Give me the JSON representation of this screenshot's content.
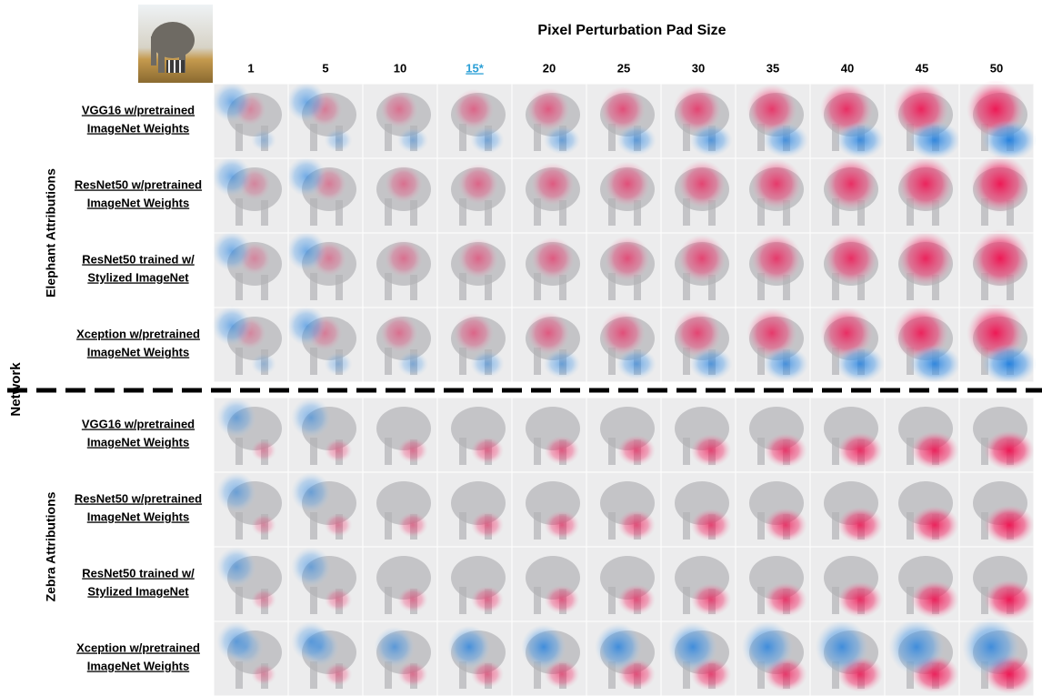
{
  "header": {
    "title": "Pixel Perturbation Pad Size",
    "pad_sizes": [
      "1",
      "5",
      "10",
      "15*",
      "20",
      "25",
      "30",
      "35",
      "40",
      "45",
      "50"
    ]
  },
  "axis_label": "Network",
  "groups": [
    {
      "label": "Elephant Attributions",
      "rows": [
        {
          "line1": "VGG16 w/pretrained",
          "line2": "ImageNet Weights"
        },
        {
          "line1": "ResNet50 w/pretrained",
          "line2": "ImageNet Weights"
        },
        {
          "line1": "ResNet50 trained w/",
          "line2": "Stylized ImageNet"
        },
        {
          "line1": "Xception w/pretrained",
          "line2": "ImageNet Weights"
        }
      ]
    },
    {
      "label": "Zebra Attributions",
      "rows": [
        {
          "line1": "VGG16 w/pretrained",
          "line2": "ImageNet Weights"
        },
        {
          "line1": "ResNet50 w/pretrained",
          "line2": "ImageNet Weights"
        },
        {
          "line1": "ResNet50 trained w/",
          "line2": "Stylized ImageNet"
        },
        {
          "line1": "Xception w/pretrained",
          "line2": "ImageNet Weights"
        }
      ]
    }
  ]
}
